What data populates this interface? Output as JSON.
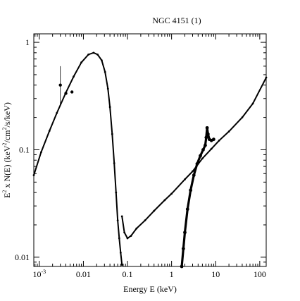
{
  "chart_data": {
    "type": "scatter",
    "title": "NGC 4151 (1)",
    "xlabel": "Energy E (keV)",
    "ylabel_parts": {
      "sq": "2",
      "pre": " x N(E) (keV",
      "cm": "/cm",
      "tail": "/s/keV)",
      "lead": "E"
    },
    "x_scale": "log",
    "y_scale": "log",
    "xlim": [
      0.00075,
      140
    ],
    "ylim": [
      0.0082,
      1.2
    ],
    "grid": false,
    "x_ticks": [
      {
        "value": 0.001,
        "label_base": "10",
        "label_exp": "-3"
      },
      {
        "value": 0.01,
        "label": "0.01"
      },
      {
        "value": 0.1,
        "label": "0.1"
      },
      {
        "value": 1,
        "label": "1"
      },
      {
        "value": 10,
        "label": "10"
      },
      {
        "value": 100,
        "label": "100"
      }
    ],
    "y_ticks": [
      {
        "value": 0.01,
        "label": "0.01"
      },
      {
        "value": 0.1,
        "label": "0.1"
      },
      {
        "value": 1,
        "label": "1"
      }
    ],
    "series": [
      {
        "style": "dense-dots",
        "x": [
          0.00075,
          0.0011,
          0.0017,
          0.0025,
          0.004,
          0.006,
          0.009,
          0.013,
          0.017,
          0.021,
          0.026,
          0.031,
          0.036,
          0.04,
          0.045,
          0.05,
          0.055,
          0.06,
          0.065,
          0.07,
          0.075
        ],
        "y": [
          0.058,
          0.095,
          0.15,
          0.22,
          0.34,
          0.48,
          0.65,
          0.77,
          0.8,
          0.77,
          0.68,
          0.53,
          0.37,
          0.25,
          0.14,
          0.075,
          0.04,
          0.022,
          0.015,
          0.011,
          0.0085
        ]
      },
      {
        "style": "dense-dots",
        "x": [
          0.075,
          0.085,
          0.1,
          0.12,
          0.16,
          0.25,
          0.4,
          0.7,
          1,
          2,
          3,
          5,
          8,
          12,
          20,
          40,
          70,
          140
        ],
        "y": [
          0.024,
          0.017,
          0.015,
          0.0158,
          0.0185,
          0.022,
          0.027,
          0.034,
          0.039,
          0.053,
          0.063,
          0.083,
          0.102,
          0.122,
          0.148,
          0.2,
          0.27,
          0.47
        ]
      },
      {
        "style": "dense-dots-thick",
        "x": [
          1.7,
          1.85,
          2.0,
          2.3,
          2.7,
          3.2,
          3.8,
          4.5,
          5.2,
          5.8,
          6.1,
          6.4,
          6.7,
          7.2,
          8.0,
          9.0
        ],
        "y": [
          0.0082,
          0.012,
          0.017,
          0.028,
          0.042,
          0.058,
          0.074,
          0.088,
          0.1,
          0.11,
          0.13,
          0.16,
          0.14,
          0.125,
          0.122,
          0.125
        ]
      }
    ],
    "error_points": [
      {
        "x": 0.003,
        "y": 0.4,
        "y_err": [
          0.255,
          0.6
        ]
      },
      {
        "x": 0.004,
        "y": 0.335
      },
      {
        "x": 0.0055,
        "y": 0.345
      }
    ]
  }
}
